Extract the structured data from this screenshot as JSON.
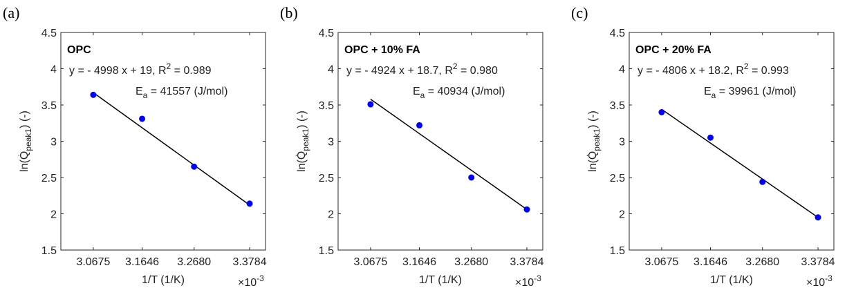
{
  "chart_data": [
    {
      "type": "scatter",
      "panel_label": "(a)",
      "title": "OPC",
      "equation": [
        "y = - 4998 x + 19, R",
        "2",
        " = 0.989"
      ],
      "annotation": [
        "E",
        "a",
        " = 41557 (J/mol)"
      ],
      "ylabel": [
        "ln(Q̇",
        "peak1",
        ") (-)"
      ],
      "xlabel": "1/T (1/K)",
      "x_exponent": [
        "×10",
        "-3"
      ],
      "x": [
        3.0675,
        3.1646,
        3.268,
        3.3784
      ],
      "values": [
        3.64,
        3.31,
        2.65,
        2.14
      ],
      "color": "#0000ff",
      "fit": {
        "x": [
          3.0675,
          3.3784
        ],
        "values": [
          3.67,
          2.12
        ],
        "color": "#000000"
      },
      "xlim": [
        3.003,
        3.41
      ],
      "ylim": [
        1.5,
        4.5
      ],
      "xticks": [
        3.0675,
        3.1646,
        {
          "value": 3.268,
          "label": "3.2680"
        },
        3.3784
      ],
      "yticks": [
        1.5,
        2,
        2.5,
        3,
        3.5,
        4,
        4.5
      ]
    },
    {
      "type": "scatter",
      "panel_label": "(b)",
      "title": "OPC + 10% FA",
      "equation": [
        "y = - 4924 x + 18.7, R",
        "2",
        " = 0.980"
      ],
      "annotation": [
        "E",
        "a",
        " = 40934 (J/mol)"
      ],
      "ylabel": [
        "ln(Q̇",
        "peak1",
        ") (-)"
      ],
      "xlabel": "1/T (1/K)",
      "x_exponent": [
        "×10",
        "-3"
      ],
      "x": [
        3.0675,
        3.1646,
        3.268,
        3.3784
      ],
      "values": [
        3.51,
        3.22,
        2.5,
        2.06
      ],
      "color": "#0000ff",
      "fit": {
        "x": [
          3.0675,
          3.3784
        ],
        "values": [
          3.58,
          2.06
        ],
        "color": "#000000"
      },
      "xlim": [
        3.003,
        3.41
      ],
      "ylim": [
        1.5,
        4.5
      ],
      "xticks": [
        3.0675,
        3.1646,
        {
          "value": 3.268,
          "label": "3.2680"
        },
        3.3784
      ],
      "yticks": [
        1.5,
        2,
        2.5,
        3,
        3.5,
        4,
        4.5
      ]
    },
    {
      "type": "scatter",
      "panel_label": "(c)",
      "title": "OPC + 20% FA",
      "equation": [
        "y = - 4806 x + 18.2, R",
        "2",
        " = 0.993"
      ],
      "annotation": [
        "E",
        "a",
        " = 39961 (J/mol)"
      ],
      "ylabel": [
        "ln(Q̇",
        "peak1",
        ") (-)"
      ],
      "xlabel": "1/T (1/K)",
      "x_exponent": [
        "×10",
        "-3"
      ],
      "x": [
        3.0675,
        3.1646,
        3.268,
        3.3784
      ],
      "values": [
        3.4,
        3.05,
        2.44,
        1.95
      ],
      "color": "#0000ff",
      "fit": {
        "x": [
          3.0675,
          3.3784
        ],
        "values": [
          3.44,
          1.95
        ],
        "color": "#000000"
      },
      "xlim": [
        3.003,
        3.41
      ],
      "ylim": [
        1.5,
        4.5
      ],
      "xticks": [
        3.0675,
        3.1646,
        {
          "value": 3.268,
          "label": "3.2680"
        },
        3.3784
      ],
      "yticks": [
        1.5,
        2,
        2.5,
        3,
        3.5,
        4,
        4.5
      ]
    }
  ]
}
